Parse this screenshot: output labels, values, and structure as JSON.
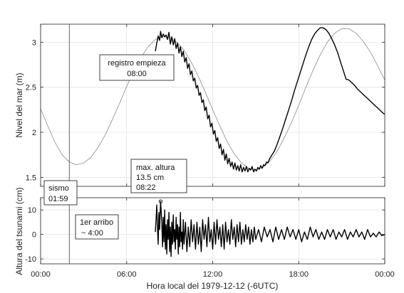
{
  "chart_data": [
    {
      "type": "line",
      "panel": "top",
      "ylabel": "Nivel del mar (m)",
      "xlabel": "Hora local del 1979-12-12 (-6UTC)",
      "xlim": [
        0,
        24
      ],
      "ylim": [
        1.4,
        3.2
      ],
      "grid": true,
      "x_ticks": [
        0,
        6,
        12,
        18,
        24
      ],
      "x_tick_labels": [
        "00:00",
        "06:00",
        "12:00",
        "18:00",
        "00:00"
      ],
      "y_ticks": [
        1.5,
        2,
        2.5,
        3
      ],
      "y_tick_labels": [
        "1.5",
        "2",
        "2.5",
        "3"
      ],
      "series": [
        {
          "role": "predicted-tide",
          "color": "#8a8a8a",
          "x": [
            0,
            0.5,
            1,
            1.5,
            2,
            2.5,
            3,
            3.5,
            4,
            4.5,
            5,
            5.5,
            6,
            6.5,
            7,
            7.5,
            8,
            8.5,
            9,
            9.5,
            10,
            10.5,
            11,
            11.5,
            12,
            12.5,
            13,
            13.5,
            14,
            14.5,
            15,
            15.5,
            16,
            16.5,
            17,
            17.5,
            18,
            18.5,
            19,
            19.5,
            20,
            20.5,
            21,
            21.5,
            22,
            22.5,
            23,
            23.5,
            24
          ],
          "y": [
            2.26,
            2.07,
            1.89,
            1.75,
            1.67,
            1.64,
            1.66,
            1.72,
            1.83,
            1.97,
            2.14,
            2.32,
            2.51,
            2.68,
            2.83,
            2.95,
            3.03,
            3.06,
            3.05,
            3.0,
            2.91,
            2.78,
            2.62,
            2.44,
            2.25,
            2.07,
            1.9,
            1.76,
            1.66,
            1.6,
            1.58,
            1.61,
            1.68,
            1.79,
            1.94,
            2.11,
            2.3,
            2.5,
            2.69,
            2.86,
            3.0,
            3.1,
            3.15,
            3.15,
            3.1,
            3.01,
            2.89,
            2.74,
            2.58
          ]
        },
        {
          "role": "observed-record",
          "color": "#000000",
          "x": [
            8.0,
            8.1,
            8.2,
            8.3,
            8.37,
            8.45,
            8.55,
            8.65,
            8.75,
            8.85,
            8.95,
            9.05,
            9.15,
            9.25,
            9.35,
            9.45,
            9.55,
            9.65,
            9.75,
            9.85,
            9.95,
            10.05,
            10.15,
            10.25,
            10.35,
            10.45,
            10.55,
            10.65,
            10.75,
            10.85,
            10.95,
            11.05,
            11.15,
            11.25,
            11.35,
            11.45,
            11.55,
            11.65,
            11.75,
            11.85,
            11.95,
            12.05,
            12.15,
            12.25,
            12.35,
            12.45,
            12.55,
            12.65,
            12.75,
            12.85,
            12.95,
            13.05,
            13.15,
            13.25,
            13.35,
            13.45,
            13.55,
            13.65,
            13.75,
            13.85,
            13.95,
            14.05,
            14.15,
            14.25,
            14.35,
            14.45,
            14.55,
            14.65,
            14.75,
            14.85,
            14.95,
            15.05,
            15.15,
            15.25,
            15.35,
            15.45,
            15.55,
            15.65,
            15.75,
            15.85,
            15.95,
            16.1,
            16.3,
            16.5,
            16.7,
            16.9,
            17.1,
            17.3,
            17.5,
            17.7,
            17.9,
            18.1,
            18.3,
            18.5,
            18.7,
            18.9,
            19.1,
            19.3,
            19.5,
            19.7,
            19.9,
            20.1,
            20.3,
            20.5,
            20.7,
            20.9,
            21.1,
            21.3,
            21.5,
            21.7,
            21.9,
            22.1,
            22.3,
            22.5,
            22.7,
            22.9,
            23.1,
            23.3,
            23.5,
            23.7,
            23.9,
            24.0
          ],
          "y": [
            2.9,
            2.99,
            3.07,
            3.02,
            3.12,
            3.05,
            3.09,
            3.06,
            3.08,
            3.03,
            3.11,
            2.98,
            3.06,
            2.97,
            3.04,
            2.93,
            2.99,
            2.88,
            2.95,
            2.84,
            2.9,
            2.78,
            2.83,
            2.71,
            2.76,
            2.64,
            2.68,
            2.57,
            2.6,
            2.49,
            2.52,
            2.41,
            2.44,
            2.33,
            2.36,
            2.24,
            2.28,
            2.15,
            2.19,
            2.06,
            2.1,
            1.98,
            2.02,
            1.9,
            1.94,
            1.82,
            1.87,
            1.75,
            1.81,
            1.69,
            1.76,
            1.65,
            1.71,
            1.62,
            1.67,
            1.59,
            1.66,
            1.58,
            1.63,
            1.57,
            1.64,
            1.56,
            1.61,
            1.57,
            1.62,
            1.56,
            1.6,
            1.58,
            1.62,
            1.56,
            1.59,
            1.57,
            1.61,
            1.59,
            1.63,
            1.6,
            1.64,
            1.63,
            1.67,
            1.66,
            1.7,
            1.74,
            1.79,
            1.87,
            1.96,
            2.05,
            2.15,
            2.25,
            2.35,
            2.46,
            2.56,
            2.66,
            2.76,
            2.86,
            2.95,
            3.03,
            3.09,
            3.13,
            3.16,
            3.16,
            3.14,
            3.1,
            3.04,
            2.97,
            2.89,
            2.79,
            2.69,
            2.59,
            2.58,
            2.55,
            2.52,
            2.48,
            2.45,
            2.42,
            2.39,
            2.36,
            2.33,
            2.3,
            2.27,
            2.24,
            2.21,
            2.2
          ]
        }
      ]
    },
    {
      "type": "line",
      "panel": "bottom",
      "ylabel": "Altura del tsunami (cm)",
      "xlabel": "Hora local del 1979-12-12 (-6UTC)",
      "xlim": [
        0,
        24
      ],
      "ylim": [
        -12,
        15
      ],
      "grid": true,
      "x_ticks": [
        0,
        6,
        12,
        18,
        24
      ],
      "x_tick_labels": [
        "00:00",
        "06:00",
        "12:00",
        "18:00",
        "00:00"
      ],
      "y_ticks": [
        -10,
        0,
        10
      ],
      "y_tick_labels": [
        "-10",
        "0",
        "10"
      ],
      "series": [
        {
          "role": "tsunami-residual",
          "color": "#000000",
          "x": [
            8.0,
            8.05,
            8.1,
            8.15,
            8.2,
            8.25,
            8.3,
            8.37,
            8.45,
            8.5,
            8.55,
            8.6,
            8.65,
            8.7,
            8.75,
            8.8,
            8.85,
            8.9,
            8.95,
            9.0,
            9.05,
            9.1,
            9.15,
            9.2,
            9.25,
            9.3,
            9.35,
            9.4,
            9.45,
            9.5,
            9.55,
            9.6,
            9.65,
            9.7,
            9.75,
            9.8,
            9.85,
            9.9,
            9.95,
            10.0,
            10.1,
            10.2,
            10.3,
            10.4,
            10.5,
            10.6,
            10.7,
            10.8,
            10.9,
            11.0,
            11.1,
            11.2,
            11.3,
            11.4,
            11.5,
            11.6,
            11.7,
            11.8,
            11.9,
            12.0,
            12.1,
            12.2,
            12.3,
            12.4,
            12.5,
            12.6,
            12.7,
            12.8,
            12.9,
            13.0,
            13.1,
            13.2,
            13.3,
            13.4,
            13.5,
            13.6,
            13.7,
            13.8,
            13.9,
            14.0,
            14.1,
            14.2,
            14.3,
            14.4,
            14.5,
            14.6,
            14.7,
            14.8,
            14.9,
            15.0,
            15.2,
            15.4,
            15.6,
            15.8,
            16.0,
            16.2,
            16.4,
            16.6,
            16.8,
            17.0,
            17.2,
            17.4,
            17.6,
            17.8,
            18.0,
            18.2,
            18.4,
            18.6,
            18.8,
            19.0,
            19.2,
            19.4,
            19.6,
            19.8,
            20.0,
            20.2,
            20.4,
            20.6,
            20.8,
            21.0,
            21.2,
            21.4,
            21.6,
            21.8,
            22.0,
            22.2,
            22.4,
            22.6,
            22.8,
            23.0,
            23.2,
            23.4,
            23.6,
            23.8,
            24.0
          ],
          "y": [
            1,
            6,
            12,
            3,
            -4,
            9,
            2,
            13.5,
            5,
            -5,
            7,
            -3,
            10,
            -6,
            4,
            -8,
            6,
            -2,
            9,
            -7,
            3,
            -9,
            5,
            -4,
            8,
            -3,
            2,
            -6,
            7,
            -2,
            4,
            -8,
            3,
            -5,
            9,
            -3,
            1,
            -6,
            6,
            -4,
            5,
            -7,
            3,
            -5,
            6,
            -3,
            4,
            -6,
            5,
            -4,
            3,
            -7,
            6,
            -2,
            4,
            -5,
            7,
            -3,
            2,
            -6,
            5,
            -4,
            6,
            -2,
            3,
            -5,
            4,
            -6,
            5,
            -3,
            2,
            -4,
            6,
            -2,
            3,
            -5,
            4,
            -3,
            5,
            -4,
            2,
            -3,
            4,
            -2,
            3,
            -4,
            2,
            -3,
            3,
            -2,
            2,
            -3,
            3,
            -1,
            2,
            -3,
            3,
            -2,
            2,
            -2,
            3,
            -1,
            2,
            -2,
            2,
            -3,
            1,
            -2,
            3,
            -1,
            2,
            -2,
            1,
            -2,
            2,
            -1,
            2,
            -2,
            1,
            -1,
            2,
            -2,
            1,
            -1,
            2,
            -1,
            1,
            -2,
            2,
            -1,
            0.5,
            -1,
            1,
            -0.5,
            0
          ]
        }
      ],
      "marker": {
        "x": 8.37,
        "y": 13.5,
        "shape": "circle"
      }
    }
  ],
  "annotations": {
    "record_start": {
      "line1": "registro empieza",
      "line2": "08:00"
    },
    "max_height": {
      "line1": "max. altura",
      "line2": "13.5 cm",
      "line3": "08:22"
    },
    "earthquake": {
      "line1": "sismo",
      "line2": "01:59",
      "x": 2.0
    },
    "first_arrival": {
      "line1": "1er arribo",
      "line2": "~ 4:00"
    }
  },
  "colors": {
    "observed": "#000000",
    "predicted": "#8a8a8a",
    "grid": "#d9d9d9"
  }
}
